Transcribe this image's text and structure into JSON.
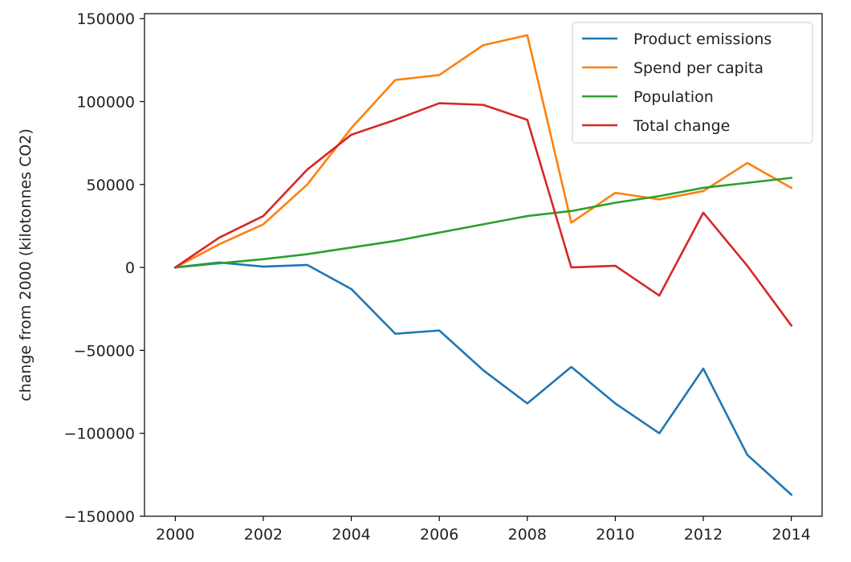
{
  "chart_data": {
    "type": "line",
    "title": "",
    "xlabel": "",
    "ylabel": "change from 2000 (kilotonnes CO2)",
    "x": [
      2000,
      2001,
      2002,
      2003,
      2004,
      2005,
      2006,
      2007,
      2008,
      2009,
      2010,
      2011,
      2012,
      2013,
      2014
    ],
    "xlim": [
      1999.3,
      2014.7
    ],
    "ylim": [
      -150000,
      153000
    ],
    "xticks": [
      2000,
      2002,
      2004,
      2006,
      2008,
      2010,
      2012,
      2014
    ],
    "xtick_labels": [
      "2000",
      "2002",
      "2004",
      "2006",
      "2008",
      "2010",
      "2012",
      "2014"
    ],
    "yticks": [
      -150000,
      -100000,
      -50000,
      0,
      50000,
      100000,
      150000
    ],
    "ytick_labels": [
      "−150000",
      "−100000",
      "−50000",
      "0",
      "50000",
      "100000",
      "150000"
    ],
    "grid": false,
    "legend_position": "top-right",
    "series": [
      {
        "name": "Product emissions",
        "color": "#1f77b4",
        "values": [
          0,
          3000,
          500,
          1500,
          -13000,
          -40000,
          -38000,
          -62000,
          -82000,
          -60000,
          -82000,
          -100000,
          -61000,
          -113000,
          -137000
        ]
      },
      {
        "name": "Spend per capita",
        "color": "#ff7f0e",
        "values": [
          0,
          14000,
          26000,
          50000,
          84000,
          113000,
          116000,
          134000,
          140000,
          27000,
          45000,
          41000,
          46000,
          63000,
          48000
        ]
      },
      {
        "name": "Population",
        "color": "#2ca02c",
        "values": [
          0,
          2500,
          5000,
          8000,
          12000,
          16000,
          21000,
          26000,
          31000,
          34000,
          39000,
          43000,
          48000,
          51000,
          54000
        ]
      },
      {
        "name": "Total change",
        "color": "#d62728",
        "values": [
          0,
          18000,
          31000,
          59000,
          80000,
          89000,
          99000,
          98000,
          89000,
          0,
          1000,
          -17000,
          33000,
          1000,
          -35000
        ]
      }
    ]
  }
}
